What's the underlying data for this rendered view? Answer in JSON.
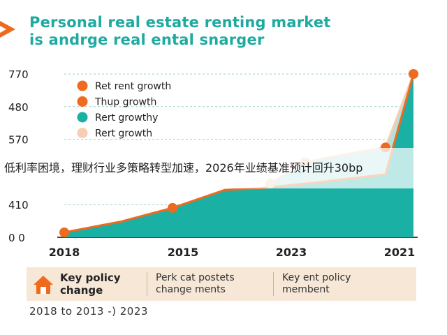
{
  "title_lines": [
    "Personal real estate renting market",
    "is andrge real ental snarger"
  ],
  "overlay_text": "低利率困境，理财行业多策略转型加速，2026年业绩基准预计回升30bp",
  "chart_data": {
    "type": "area",
    "x_labels": [
      "2018",
      "2015",
      "2023",
      "2021"
    ],
    "y_tick_labels": [
      "770",
      "480",
      "570",
      "",
      "410",
      "0 0"
    ],
    "legend": [
      {
        "label": "Ret rent growth",
        "color": "#ee6a1e"
      },
      {
        "label": "Thup growth",
        "color": "#ee6a1e"
      },
      {
        "label": "Rert growthy",
        "color": "#1bb0a4"
      },
      {
        "label": "Rert growth",
        "color": "#f7cdb4"
      }
    ],
    "ylim": [
      0,
      100
    ],
    "series": [
      {
        "role": "main-area",
        "x": [
          0,
          1.6,
          3.1,
          4.6,
          5.6,
          7.2,
          9.2,
          10.0
        ],
        "y": [
          3,
          9.5,
          18,
          29,
          30,
          33.5,
          38.5,
          100
        ]
      },
      {
        "role": "light-area",
        "x": [
          5.9,
          6.9,
          8.1,
          9.2,
          10.0
        ],
        "y": [
          33,
          46,
          51,
          55,
          100
        ]
      }
    ],
    "markers": [
      {
        "x": 0,
        "y": 3,
        "kind": "orange"
      },
      {
        "x": 3.1,
        "y": 18,
        "kind": "orange"
      },
      {
        "x": 5.9,
        "y": 33,
        "kind": "light"
      },
      {
        "x": 6.9,
        "y": 46,
        "kind": "light"
      },
      {
        "x": 9.2,
        "y": 55,
        "kind": "orange"
      },
      {
        "x": 10.0,
        "y": 100,
        "kind": "orange"
      }
    ],
    "grid": true,
    "legend_placement": "top-left"
  },
  "colors": {
    "teal": "#1bb0a4",
    "teal_light": "#a8e0da",
    "orange": "#ee6a1e",
    "peach": "#f7cdb4",
    "policy_bg": "#f7e7d6"
  },
  "policy": {
    "icon": "house-icon",
    "key_label_1": "Key policy",
    "key_label_2": "change",
    "col1_line1": "Perk cat postets",
    "col1_line2": "change ments",
    "col2_line1": "Key ent policy",
    "col2_line2": "membent"
  },
  "footer": "2018 to 2013 -) 2023"
}
